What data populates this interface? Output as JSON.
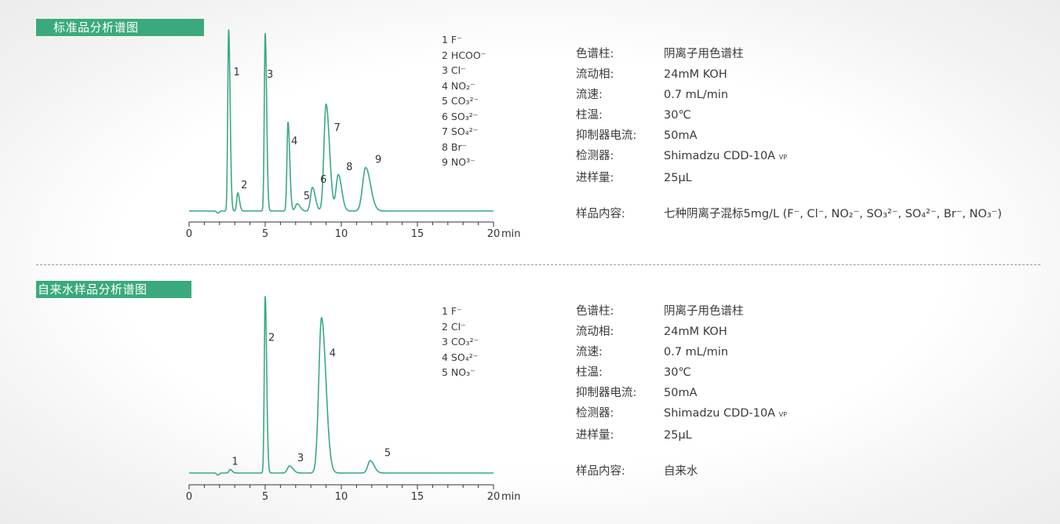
{
  "panels": [
    {
      "badge": "标准品分析谱图",
      "legend": [
        "1 F⁻",
        "2 HCOO⁻",
        "3 Cl⁻",
        "4 NO₂⁻",
        "5 CO₃²⁻",
        "6 SO₃²⁻",
        "7 SO₄²⁻",
        "8 Br⁻",
        "9 NO³⁻"
      ],
      "info": {
        "column_label": "色谱柱:",
        "column_value": "阴离子用色谱柱",
        "mobile_label": "流动相:",
        "mobile_value": "24mM KOH",
        "flow_label": "流速:",
        "flow_value": "0.7 mL/min",
        "temp_label": "柱温:",
        "temp_value": "30℃",
        "suppressor_label": "抑制器电流:",
        "suppressor_value": "50mA",
        "detector_label": "检测器:",
        "detector_value": "Shimadzu CDD-10A",
        "detector_suffix": "VP",
        "inject_label": "进样量:",
        "inject_value": "25μL",
        "sample_label": "样品内容:",
        "sample_value": "七种阴离子混标5mg/L (F⁻, Cl⁻, NO₂⁻, SO₃²⁻, SO₄²⁻, Br⁻, NO₃⁻)"
      }
    },
    {
      "badge": "自来水样品分析谱图",
      "legend": [
        "1 F⁻",
        "2 Cl⁻",
        "3 CO₃²⁻",
        "4 SO₄²⁻",
        "5 NO₃⁻"
      ],
      "info": {
        "column_label": "色谱柱:",
        "column_value": "阴离子用色谱柱",
        "mobile_label": "流动相:",
        "mobile_value": "24mM KOH",
        "flow_label": "流速:",
        "flow_value": "0.7 mL/min",
        "temp_label": "柱温:",
        "temp_value": "30℃",
        "suppressor_label": "抑制器电流:",
        "suppressor_value": "50mA",
        "detector_label": "检测器:",
        "detector_value": "Shimadzu CDD-10A",
        "detector_suffix": "VP",
        "inject_label": "进样量:",
        "inject_value": "25μL",
        "sample_label": "样品内容:",
        "sample_value": "自来水"
      }
    }
  ],
  "chart_data": [
    {
      "type": "line",
      "xlabel": "min",
      "xlim": [
        0,
        20
      ],
      "xticks": [
        0,
        5,
        10,
        15,
        20
      ],
      "color": "#3aaa7d",
      "ylim": [
        0,
        100
      ],
      "peaks": [
        {
          "label": "1",
          "x": 2.6,
          "height": 100
        },
        {
          "label": "2",
          "x": 3.2,
          "height": 10
        },
        {
          "label": "3",
          "x": 5.0,
          "height": 98
        },
        {
          "label": "4",
          "x": 6.5,
          "height": 49
        },
        {
          "label": "5",
          "x": 7.1,
          "height": 4
        },
        {
          "label": "6",
          "x": 8.1,
          "height": 13
        },
        {
          "label": "7",
          "x": 9.0,
          "height": 59
        },
        {
          "label": "8",
          "x": 9.8,
          "height": 20
        },
        {
          "label": "9",
          "x": 11.6,
          "height": 24
        }
      ]
    },
    {
      "type": "line",
      "xlabel": "min",
      "xlim": [
        0,
        20
      ],
      "xticks": [
        0,
        5,
        10,
        15,
        20
      ],
      "color": "#3aaa7d",
      "ylim": [
        0,
        100
      ],
      "peaks": [
        {
          "label": "1",
          "x": 2.7,
          "height": 2
        },
        {
          "label": "2",
          "x": 5.0,
          "height": 100
        },
        {
          "label": "3",
          "x": 6.6,
          "height": 4
        },
        {
          "label": "4",
          "x": 8.7,
          "height": 88
        },
        {
          "label": "5",
          "x": 11.9,
          "height": 7
        }
      ]
    }
  ]
}
